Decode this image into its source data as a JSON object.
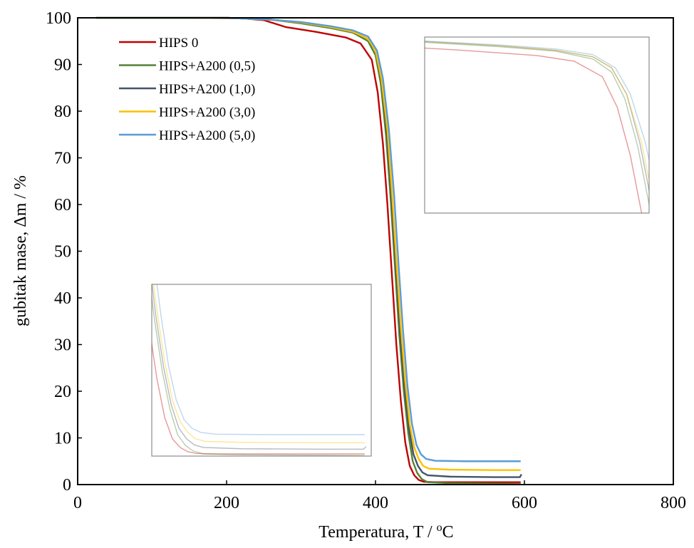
{
  "chart_data": {
    "type": "line",
    "xlabel": "Temperatura, T / ",
    "xlabel_sup": "o",
    "xlabel_unit": "C",
    "ylabel": "gubitak mase, Δm  / %",
    "xlim": [
      0,
      800
    ],
    "ylim": [
      0,
      100
    ],
    "xticks": [
      0,
      200,
      400,
      600,
      800
    ],
    "yticks": [
      0,
      10,
      20,
      30,
      40,
      50,
      60,
      70,
      80,
      90,
      100
    ],
    "grid": false,
    "legend_position": "top-left",
    "series": [
      {
        "name": "HIPS 0",
        "color": "#C00000",
        "points": [
          [
            25,
            100
          ],
          [
            150,
            100
          ],
          [
            220,
            99.9
          ],
          [
            250,
            99.5
          ],
          [
            280,
            98
          ],
          [
            320,
            97
          ],
          [
            360,
            95.8
          ],
          [
            380,
            94.5
          ],
          [
            395,
            91
          ],
          [
            403,
            84
          ],
          [
            410,
            73
          ],
          [
            416,
            60
          ],
          [
            422,
            45
          ],
          [
            428,
            30
          ],
          [
            434,
            18
          ],
          [
            440,
            9
          ],
          [
            446,
            4
          ],
          [
            452,
            2
          ],
          [
            458,
            1
          ],
          [
            465,
            0.6
          ],
          [
            480,
            0.5
          ],
          [
            520,
            0.5
          ],
          [
            595,
            0.5
          ]
        ]
      },
      {
        "name": "HIPS+A200 (0,5)",
        "color": "#548235",
        "points": [
          [
            25,
            100
          ],
          [
            200,
            100
          ],
          [
            260,
            99.6
          ],
          [
            300,
            98.8
          ],
          [
            340,
            97.8
          ],
          [
            370,
            96.8
          ],
          [
            390,
            95
          ],
          [
            400,
            92
          ],
          [
            407,
            86
          ],
          [
            414,
            75
          ],
          [
            420,
            62
          ],
          [
            426,
            47
          ],
          [
            432,
            32
          ],
          [
            438,
            20
          ],
          [
            444,
            11
          ],
          [
            450,
            5
          ],
          [
            456,
            2.5
          ],
          [
            462,
            1.2
          ],
          [
            470,
            0.5
          ],
          [
            500,
            0.3
          ],
          [
            560,
            0.2
          ],
          [
            595,
            0.1
          ]
        ]
      },
      {
        "name": "HIPS+A200 (1,0)",
        "color": "#44546A",
        "points": [
          [
            25,
            100
          ],
          [
            200,
            100
          ],
          [
            260,
            99.6
          ],
          [
            300,
            99
          ],
          [
            340,
            98
          ],
          [
            370,
            97
          ],
          [
            390,
            95.5
          ],
          [
            400,
            93
          ],
          [
            408,
            87
          ],
          [
            415,
            76
          ],
          [
            421,
            63
          ],
          [
            427,
            48
          ],
          [
            433,
            33
          ],
          [
            439,
            21
          ],
          [
            445,
            12
          ],
          [
            451,
            6.5
          ],
          [
            457,
            4
          ],
          [
            463,
            2.6
          ],
          [
            470,
            2
          ],
          [
            500,
            1.7
          ],
          [
            560,
            1.6
          ],
          [
            594,
            1.6
          ],
          [
            596,
            2.2
          ]
        ]
      },
      {
        "name": "HIPS+A200 (3,0)",
        "color": "#FFC000",
        "points": [
          [
            25,
            100
          ],
          [
            200,
            100
          ],
          [
            260,
            99.6
          ],
          [
            300,
            99
          ],
          [
            340,
            98
          ],
          [
            370,
            97
          ],
          [
            390,
            95.5
          ],
          [
            400,
            93
          ],
          [
            408,
            87
          ],
          [
            416,
            76
          ],
          [
            422,
            63
          ],
          [
            428,
            48
          ],
          [
            434,
            34
          ],
          [
            440,
            22
          ],
          [
            446,
            13
          ],
          [
            452,
            8
          ],
          [
            458,
            5.5
          ],
          [
            464,
            4
          ],
          [
            472,
            3.4
          ],
          [
            500,
            3.2
          ],
          [
            560,
            3.1
          ],
          [
            595,
            3.1
          ]
        ]
      },
      {
        "name": "HIPS+A200 (5,0)",
        "color": "#5B9BD5",
        "points": [
          [
            25,
            100
          ],
          [
            200,
            100
          ],
          [
            260,
            99.6
          ],
          [
            300,
            99.1
          ],
          [
            340,
            98.2
          ],
          [
            370,
            97.3
          ],
          [
            390,
            96
          ],
          [
            402,
            93
          ],
          [
            410,
            87
          ],
          [
            418,
            76
          ],
          [
            425,
            62
          ],
          [
            431,
            47
          ],
          [
            437,
            33
          ],
          [
            443,
            21
          ],
          [
            449,
            13
          ],
          [
            455,
            8.5
          ],
          [
            461,
            6.5
          ],
          [
            468,
            5.5
          ],
          [
            480,
            5.1
          ],
          [
            520,
            5
          ],
          [
            595,
            5
          ]
        ]
      }
    ],
    "insets": [
      {
        "name": "inset-top-right-zoom",
        "description_free": true,
        "xlim": [
          300,
          420
        ],
        "ylim": [
          60,
          100
        ]
      },
      {
        "name": "inset-bottom-left-zoom",
        "xlim": [
          430,
          600
        ],
        "ylim": [
          0,
          40
        ]
      }
    ]
  }
}
